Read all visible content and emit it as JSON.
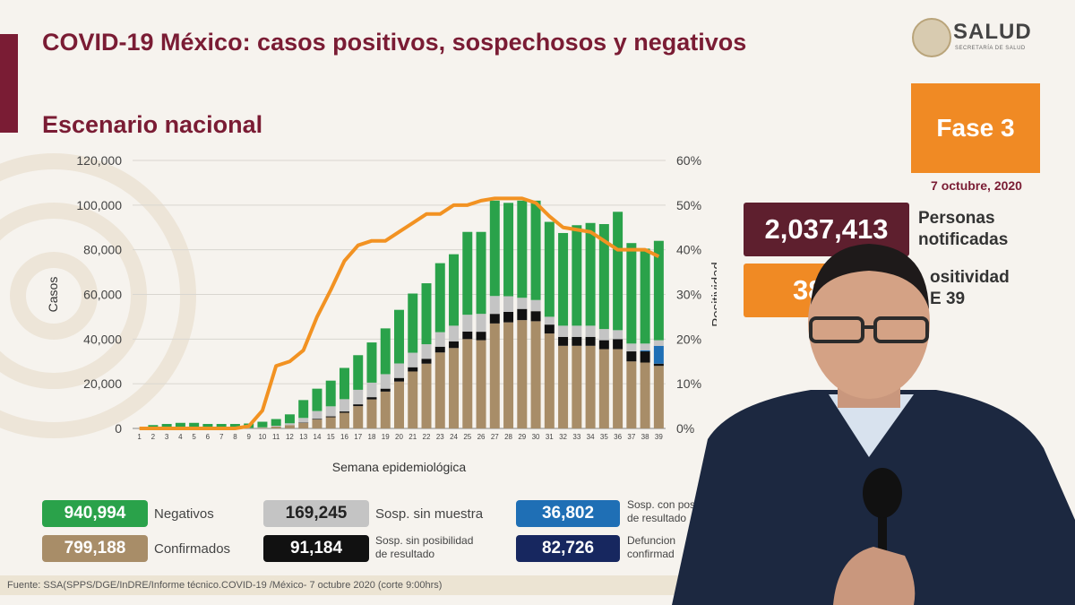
{
  "header": {
    "title": "COVID-19 México: casos positivos, sospechosos y negativos",
    "subtitle": "Escenario nacional"
  },
  "logo": {
    "name": "SALUD",
    "sub": "SECRETARÍA DE SALUD"
  },
  "phase": {
    "label": "Fase 3",
    "date": "7 octubre, 2020"
  },
  "stats": {
    "notified_value": "2,037,413",
    "notified_label_1": "Personas",
    "notified_label_2": "notificadas",
    "positivity_value": "38",
    "positivity_label_1": "ositividad",
    "positivity_label_2": "E 39"
  },
  "chart_data": {
    "type": "bar",
    "xlabel": "Semana epidemiológica",
    "ylabel": "Casos",
    "y2label": "Positividad",
    "ylim": [
      0,
      120000
    ],
    "y2lim": [
      0,
      60
    ],
    "yticks": [
      "0",
      "20,000",
      "40,000",
      "60,000",
      "80,000",
      "100,000",
      "120,000"
    ],
    "y2ticks": [
      "0%",
      "10%",
      "20%",
      "30%",
      "40%",
      "50%",
      "60%"
    ],
    "grid": true,
    "categories": [
      "1",
      "2",
      "3",
      "4",
      "5",
      "6",
      "7",
      "8",
      "9",
      "10",
      "11",
      "12",
      "13",
      "14",
      "15",
      "16",
      "17",
      "18",
      "19",
      "20",
      "21",
      "22",
      "23",
      "24",
      "25",
      "26",
      "27",
      "28",
      "29",
      "30",
      "31",
      "32",
      "33",
      "34",
      "35",
      "36",
      "37",
      "38",
      "39"
    ],
    "stacked": true,
    "series": [
      {
        "name": "Confirmados",
        "color": "#a88d68",
        "values": [
          0,
          0,
          0,
          0,
          0,
          0,
          0,
          0,
          100,
          300,
          800,
          1500,
          2500,
          4000,
          5000,
          7000,
          10000,
          13000,
          16500,
          21000,
          25500,
          29000,
          34000,
          36000,
          40000,
          39500,
          47000,
          47500,
          48500,
          48000,
          42500,
          37000,
          37000,
          37000,
          35500,
          35500,
          30000,
          29500,
          28000
        ]
      },
      {
        "name": "Sosp. sin posibilidad de resultado",
        "color": "#111111",
        "values": [
          0,
          0,
          0,
          0,
          0,
          0,
          0,
          0,
          0,
          0,
          0,
          0,
          200,
          300,
          400,
          600,
          800,
          1000,
          1300,
          1600,
          1900,
          2200,
          2600,
          3000,
          3400,
          3800,
          4300,
          4700,
          5000,
          4500,
          4000,
          4000,
          4000,
          4000,
          4000,
          4500,
          4500,
          5000,
          1000
        ]
      },
      {
        "name": "Sosp. con posibilidad de resultado",
        "color": "#1f6fb5",
        "values": [
          0,
          0,
          0,
          0,
          0,
          0,
          0,
          0,
          0,
          0,
          0,
          0,
          0,
          0,
          0,
          0,
          0,
          0,
          0,
          0,
          0,
          0,
          0,
          0,
          0,
          0,
          0,
          0,
          0,
          0,
          0,
          0,
          0,
          0,
          0,
          0,
          0,
          500,
          8000
        ]
      },
      {
        "name": "Sosp. sin muestra",
        "color": "#c4c4c4",
        "values": [
          0,
          0,
          0,
          0,
          0,
          0,
          0,
          0,
          100,
          200,
          400,
          800,
          2000,
          3500,
          4500,
          5500,
          6500,
          6500,
          6500,
          6500,
          6500,
          6500,
          6500,
          7000,
          7500,
          8000,
          8000,
          7000,
          5000,
          5000,
          3500,
          5000,
          5000,
          5000,
          5000,
          4000,
          3500,
          3000,
          2500
        ]
      },
      {
        "name": "Negativos",
        "color": "#2aa24a",
        "values": [
          0,
          1500,
          2000,
          2500,
          2500,
          2000,
          2000,
          2000,
          2000,
          2500,
          3000,
          4000,
          8000,
          10000,
          11500,
          14000,
          15500,
          18000,
          20500,
          24000,
          26500,
          27300,
          30900,
          32000,
          37100,
          36700,
          42700,
          41800,
          43500,
          44500,
          42500,
          41500,
          45000,
          46000,
          47000,
          53000,
          45000,
          42500,
          44500
        ]
      }
    ],
    "positivity_pct": [
      0,
      0,
      0,
      0,
      0,
      0,
      0,
      0,
      0.5,
      4,
      14,
      15,
      17.5,
      25,
      31,
      37.5,
      41,
      42,
      42,
      44,
      46,
      48,
      48,
      50,
      50,
      51,
      51.5,
      51.5,
      51.5,
      50.5,
      47.5,
      45,
      44.5,
      44,
      42,
      40,
      40,
      40,
      38.5
    ]
  },
  "legend": [
    {
      "value": "940,994",
      "label": "Negativos",
      "color": "#2aa24a"
    },
    {
      "value": "169,245",
      "label": "Sosp. sin muestra",
      "color": "#c4c4c4"
    },
    {
      "value": "36,802",
      "label_1": "Sosp. con pos",
      "label_2": "de resultado",
      "color": "#1f6fb5"
    },
    {
      "value": "799,188",
      "label": "Confirmados",
      "color": "#a88d68"
    },
    {
      "value": "91,184",
      "label_1": "Sosp. sin posibilidad",
      "label_2": "de resultado",
      "color": "#111111"
    },
    {
      "value": "82,726",
      "label_1": "Defuncion",
      "label_2": "confirmad",
      "color": "#17275f"
    }
  ],
  "source": "Fuente: SSA(SPPS/DGE/InDRE/Informe técnico.COVID-19 /México- 7 octubre 2020 (corte 9:00hrs)"
}
